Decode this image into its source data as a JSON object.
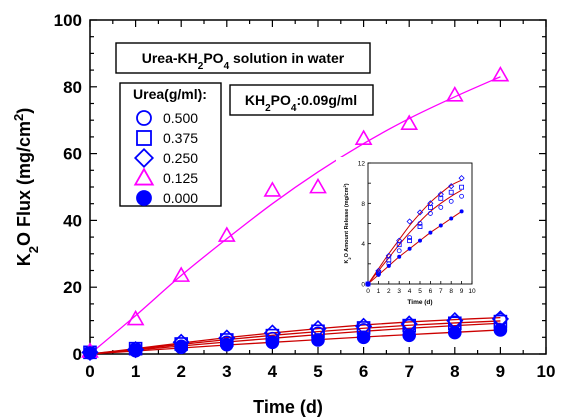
{
  "chart_data": [
    {
      "type": "scatter",
      "title": "",
      "xlabel": "Time (d)",
      "ylabel": "K2O Flux (mg/cm2)",
      "xlim": [
        0,
        10
      ],
      "ylim": [
        0,
        100
      ],
      "x_ticks": [
        0,
        1,
        2,
        3,
        4,
        5,
        6,
        7,
        8,
        9,
        10
      ],
      "y_ticks": [
        0,
        20,
        40,
        60,
        80,
        100
      ],
      "grid": false,
      "legend_placement": "left",
      "annotations": {
        "solution_label": "Urea-KH2PO4 solution in water",
        "kh2po4_label": "KH2PO4:0.09g/ml",
        "legend_title": "Urea(g/ml):"
      },
      "x": [
        0,
        1,
        2,
        3,
        4,
        5,
        6,
        7,
        8,
        9
      ],
      "series": [
        {
          "name": "0.500",
          "marker": "circle-open",
          "color": "#0000ff",
          "values": [
            0.5,
            1.5,
            2.3,
            3.5,
            4.6,
            6.2,
            7.2,
            8.5,
            9.5,
            10.3
          ]
        },
        {
          "name": "0.375",
          "marker": "square-open",
          "color": "#0000ff",
          "values": [
            0.5,
            1.6,
            3.0,
            4.2,
            5.5,
            6.8,
            7.8,
            8.5,
            9.2,
            9.7
          ]
        },
        {
          "name": "0.250",
          "marker": "diamond-open",
          "color": "#0000ff",
          "values": [
            0.5,
            1.3,
            3.5,
            4.8,
            6.3,
            7.6,
            8.3,
            9.0,
            10.0,
            10.5
          ]
        },
        {
          "name": "0.125",
          "marker": "triangle-open",
          "color": "#ff00ff",
          "values": [
            0.8,
            10.5,
            23.5,
            35.5,
            49.0,
            50.0,
            64.5,
            69.0,
            77.5,
            83.5
          ]
        },
        {
          "name": "0.000",
          "marker": "circle-filled",
          "color": "#0000ff",
          "values": [
            0.3,
            1.0,
            2.0,
            2.8,
            3.5,
            4.2,
            5.0,
            5.6,
            6.4,
            7.2
          ]
        }
      ],
      "fit_lines": [
        {
          "color": "#ff00ff",
          "values": [
            0,
            11.5,
            23.5,
            34.5,
            45.0,
            54.5,
            63.0,
            70.5,
            77.0,
            83.0
          ]
        },
        {
          "color": "#cc0000",
          "values": [
            0,
            1.6,
            3.3,
            4.9,
            6.3,
            7.6,
            8.7,
            9.6,
            10.3,
            10.9
          ]
        },
        {
          "color": "#cc0000",
          "values": [
            0,
            1.4,
            2.9,
            4.3,
            5.6,
            6.7,
            7.7,
            8.6,
            9.3,
            9.9
          ]
        },
        {
          "color": "#cc0000",
          "values": [
            0,
            1.2,
            2.4,
            3.6,
            4.7,
            5.8,
            6.8,
            7.7,
            8.5,
            9.2
          ]
        },
        {
          "color": "#cc0000",
          "values": [
            0,
            0.9,
            1.8,
            2.7,
            3.5,
            4.3,
            5.1,
            5.8,
            6.5,
            7.2
          ]
        }
      ]
    },
    {
      "type": "scatter",
      "title": "",
      "xlabel": "Time (d)",
      "ylabel": "K2O Amount Release (mg/cm2)",
      "xlim": [
        0,
        10
      ],
      "ylim": [
        0,
        12
      ],
      "x_ticks": [
        0,
        1,
        2,
        3,
        4,
        5,
        6,
        7,
        8,
        9,
        10
      ],
      "y_ticks": [
        0,
        4,
        8,
        12
      ],
      "grid": false,
      "x": [
        0,
        1,
        2,
        3,
        4,
        5,
        6,
        7,
        8,
        9
      ],
      "series": [
        {
          "name": "0.500",
          "marker": "circle-open",
          "color": "#0000ff",
          "values": [
            0,
            1.0,
            2.0,
            3.3,
            4.6,
            6.0,
            7.0,
            7.6,
            8.2,
            8.7
          ]
        },
        {
          "name": "0.375",
          "marker": "square-open",
          "color": "#0000ff",
          "values": [
            0,
            1.1,
            2.4,
            3.9,
            4.3,
            5.7,
            7.6,
            8.5,
            9.1,
            9.6
          ]
        },
        {
          "name": "0.250",
          "marker": "diamond-open",
          "color": "#0000ff",
          "values": [
            0,
            1.3,
            2.8,
            4.3,
            6.2,
            7.1,
            8.0,
            8.9,
            9.7,
            10.5
          ]
        },
        {
          "name": "0.000",
          "marker": "circle-filled",
          "color": "#0000ff",
          "values": [
            0,
            0.9,
            1.8,
            2.7,
            3.5,
            4.3,
            5.1,
            5.8,
            6.5,
            7.2
          ]
        }
      ],
      "fit_lines": [
        {
          "color": "#cc0000",
          "values": [
            0,
            1.5,
            3.0,
            4.4,
            5.8,
            7.0,
            8.1,
            9.0,
            9.8,
            10.3
          ]
        },
        {
          "color": "#cc0000",
          "values": [
            0,
            1.3,
            2.6,
            3.9,
            5.1,
            6.2,
            7.2,
            8.0,
            8.7,
            9.3
          ]
        },
        {
          "color": "#cc0000",
          "values": [
            0,
            0.9,
            1.8,
            2.7,
            3.5,
            4.3,
            5.1,
            5.8,
            6.5,
            7.2
          ]
        }
      ]
    }
  ]
}
